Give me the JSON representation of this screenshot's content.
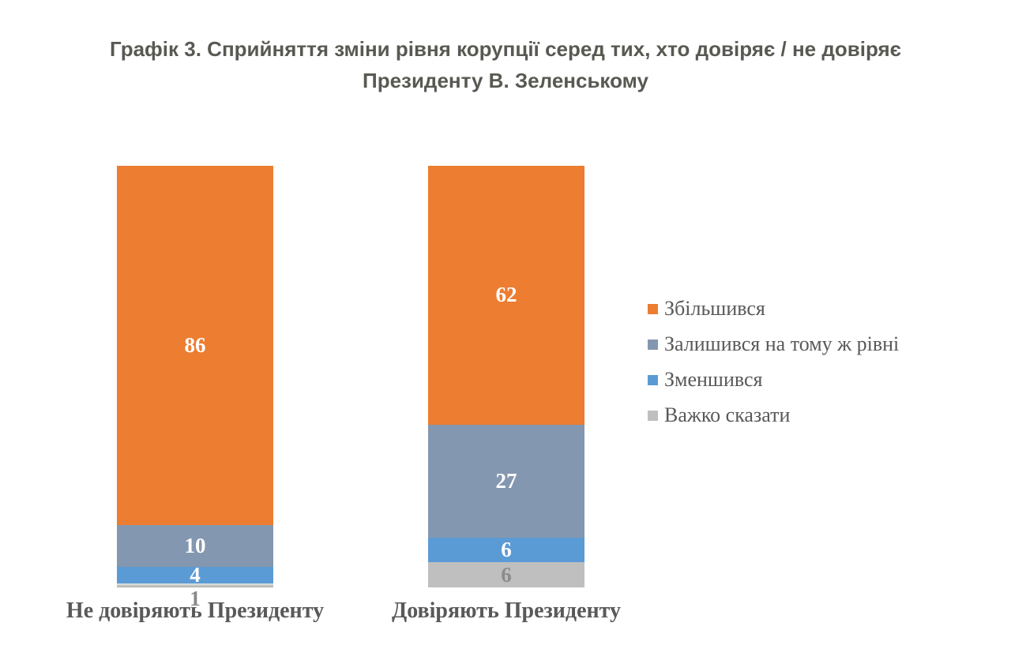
{
  "title": {
    "line1": "Графік 3. Сприйняття зміни рівня корупції серед тих, хто довіряє / не довіряє",
    "line2": "Президенту В. Зеленському"
  },
  "chart_data": {
    "type": "bar",
    "subtype": "stacked-vertical",
    "title": "Графік 3. Сприйняття зміни рівня корупції серед тих, хто довіряє / не довіряє Президенту В. Зеленському",
    "categories": [
      "Не довіряють Президенту",
      "Довіряють Президенту"
    ],
    "series": [
      {
        "name": "Збільшився",
        "color": "#ED7D31",
        "values": [
          86,
          62
        ],
        "label_color": "#FFFFFF"
      },
      {
        "name": "Залишився на тому ж рівні",
        "color": "#8497B0",
        "values": [
          10,
          27
        ],
        "label_color": "#FFFFFF"
      },
      {
        "name": "Зменшився",
        "color": "#5B9BD5",
        "values": [
          4,
          6
        ],
        "label_color": "#FFFFFF"
      },
      {
        "name": "Важко сказати",
        "color": "#BFBFBF",
        "values": [
          1,
          6
        ],
        "label_color": "#8C8C8C"
      }
    ],
    "stack_totals": [
      101,
      101
    ],
    "ylim": [
      0,
      101
    ],
    "value_labels": true,
    "outside_label_color": "#898989",
    "legend_position": "right",
    "axes_hidden": true,
    "grid": false,
    "text_colors": {
      "title": "#595953",
      "category_labels": "#595959",
      "legend_labels": "#595959"
    }
  }
}
